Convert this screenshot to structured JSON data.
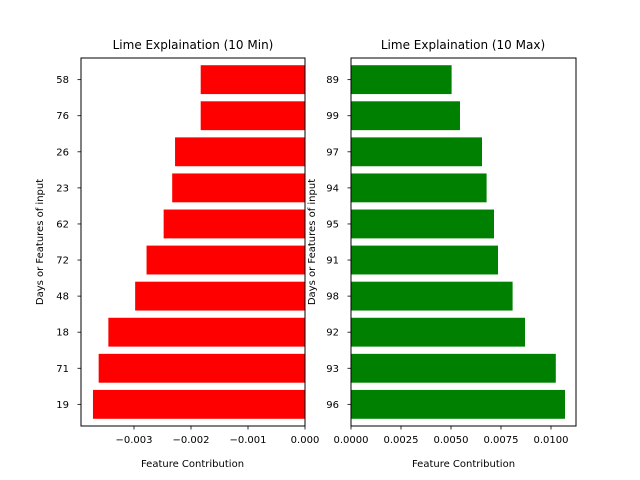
{
  "chart_data": [
    {
      "type": "bar",
      "orientation": "horizontal",
      "title": "Lime Explaination (10 Min)",
      "xlabel": "Feature Contribution",
      "ylabel": "Days or Features of input",
      "categories": [
        "19",
        "71",
        "18",
        "48",
        "72",
        "62",
        "23",
        "26",
        "76",
        "58"
      ],
      "values": [
        -0.00372,
        -0.00362,
        -0.00345,
        -0.00298,
        -0.00278,
        -0.00248,
        -0.00233,
        -0.00228,
        -0.00183,
        -0.00183
      ],
      "xlim": [
        -0.00393,
        0.0
      ],
      "xticks": [
        -0.003,
        -0.002,
        -0.001,
        0.0
      ],
      "xtick_labels": [
        "−0.003",
        "−0.002",
        "−0.001",
        "0.000"
      ],
      "color": "#ff0000",
      "grid": false
    },
    {
      "type": "bar",
      "orientation": "horizontal",
      "title": "Lime Explaination (10 Max)",
      "xlabel": "Feature Contribution",
      "ylabel": "Days or Features of input",
      "categories": [
        "96",
        "93",
        "92",
        "98",
        "91",
        "95",
        "94",
        "97",
        "99",
        "89"
      ],
      "values": [
        0.0107,
        0.01024,
        0.0087,
        0.00808,
        0.00735,
        0.00715,
        0.00678,
        0.00655,
        0.00545,
        0.00503
      ],
      "xlim": [
        0.0,
        0.01125
      ],
      "xticks": [
        0.0,
        0.0025,
        0.005,
        0.0075,
        0.01
      ],
      "xtick_labels": [
        "0.0000",
        "0.0025",
        "0.0050",
        "0.0075",
        "0.0100"
      ],
      "color": "#008000",
      "grid": false
    }
  ]
}
